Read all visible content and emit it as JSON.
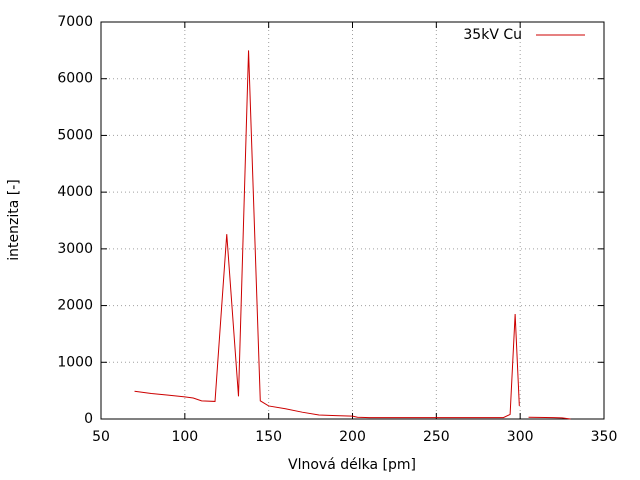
{
  "chart_data": {
    "type": "line",
    "xlabel": "Vlnová délka [pm]",
    "ylabel": "intenzita [-]",
    "x": [
      70,
      80,
      90,
      100,
      105,
      110,
      118,
      125,
      132,
      138,
      145,
      150,
      160,
      170,
      180,
      190,
      200,
      203,
      210,
      250,
      290,
      294,
      297,
      299.5,
      302,
      305,
      320,
      325,
      330
    ],
    "series": [
      {
        "name": "35kV Cu",
        "color": "#cc0000",
        "values": [
          490,
          450,
          420,
          390,
          370,
          320,
          310,
          3260,
          400,
          6500,
          320,
          230,
          180,
          120,
          70,
          60,
          50,
          30,
          25,
          25,
          25,
          80,
          1850,
          230,
          null,
          30,
          25,
          20,
          0
        ]
      }
    ],
    "xlim": [
      50,
      350
    ],
    "xticks": [
      50,
      100,
      150,
      200,
      250,
      300,
      350
    ],
    "ylim": [
      0,
      7000
    ],
    "yticks": [
      0,
      1000,
      2000,
      3000,
      4000,
      5000,
      6000,
      7000
    ],
    "grid": true,
    "legend": "top-right"
  }
}
